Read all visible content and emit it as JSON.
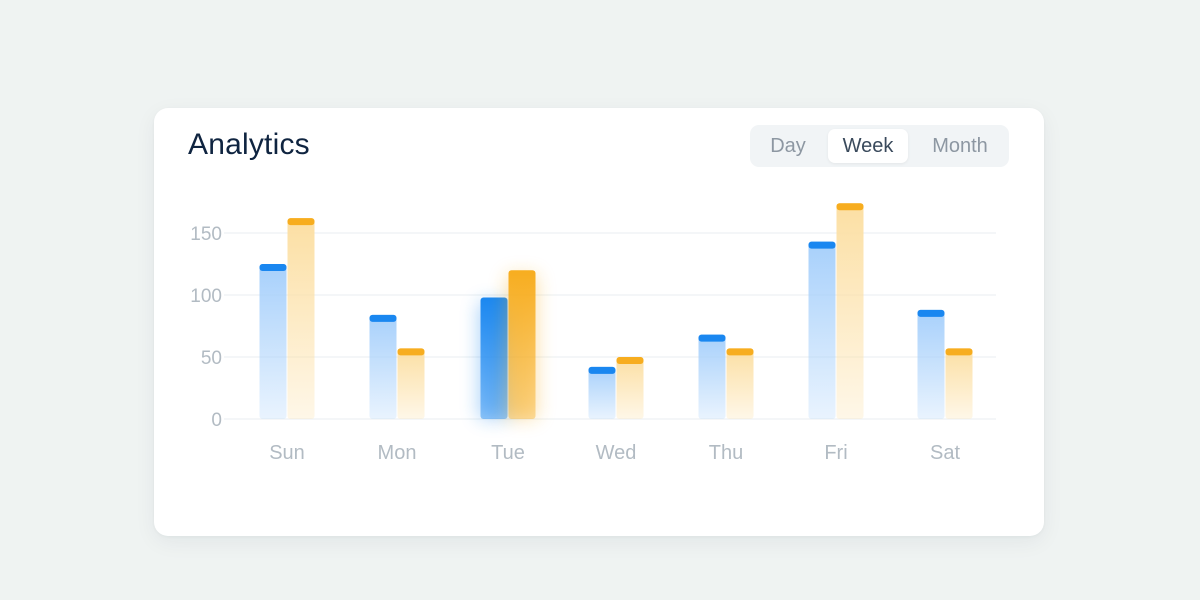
{
  "header": {
    "title": "Analytics"
  },
  "range_tabs": [
    {
      "label": "Day",
      "active": false
    },
    {
      "label": "Week",
      "active": true
    },
    {
      "label": "Month",
      "active": false
    }
  ],
  "colors": {
    "blue": "#1a87f0",
    "orange": "#f7ad1f",
    "blue_light": "#a7d0fb",
    "orange_light": "#fcdfa3",
    "grid": "#eef1f3",
    "tick": "#b2bbc3"
  },
  "chart_data": {
    "type": "bar",
    "categories": [
      "Sun",
      "Mon",
      "Tue",
      "Wed",
      "Thu",
      "Fri",
      "Sat"
    ],
    "series": [
      {
        "values": [
          125,
          84,
          98,
          42,
          68,
          143,
          88
        ]
      },
      {
        "values": [
          162,
          57,
          120,
          50,
          57,
          174,
          57
        ]
      }
    ],
    "yticks": [
      "0",
      "50",
      "100",
      "150"
    ],
    "ylim": [
      0,
      150
    ],
    "highlighted_category": "Tue",
    "grid": true
  }
}
